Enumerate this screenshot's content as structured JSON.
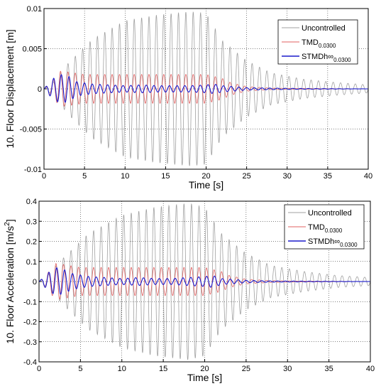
{
  "chart_data": [
    {
      "type": "line",
      "xlabel": "Time [s]",
      "ylabel": "10. Floor Displacement [m]",
      "xlim": [
        0,
        40
      ],
      "ylim": [
        -0.01,
        0.01
      ],
      "xticks": [
        "0",
        "5",
        "10",
        "15",
        "20",
        "25",
        "30",
        "35",
        "40"
      ],
      "yticks": [
        "-0.01",
        "-0.005",
        "0",
        "0.005",
        "0.01"
      ],
      "grid": true,
      "legend_position": "top-right",
      "series": [
        {
          "name": "Uncontrolled",
          "color": "#a0a0a0",
          "frequency_hz": 1.1,
          "envelope": {
            "t": [
              0,
              1,
              3,
              6,
              10,
              14,
              18,
              20,
              22,
              25,
              28,
              32,
              36,
              40
            ],
            "a": [
              0,
              0.0007,
              0.0032,
              0.0062,
              0.0085,
              0.0092,
              0.0096,
              0.0094,
              0.006,
              0.0035,
              0.002,
              0.0012,
              0.0008,
              0.0005
            ]
          }
        },
        {
          "name": "TMD",
          "name_sub": "0.0300",
          "color": "#e06060",
          "frequency_hz": 1.1,
          "envelope": {
            "t": [
              0,
              1,
              2,
              3,
              5,
              10,
              15,
              20,
              22,
              23,
              25,
              28,
              32,
              40
            ],
            "a": [
              0,
              0.001,
              0.0022,
              0.0021,
              0.0018,
              0.0018,
              0.0018,
              0.0018,
              0.0013,
              0.0008,
              0.0003,
              0.0001,
              5e-05,
              0
            ]
          }
        },
        {
          "name": "STMDh∞",
          "name_sub": "0.0300",
          "color": "#1a1acc",
          "frequency_hz": 1.05,
          "envelope": {
            "t": [
              0,
              1,
              2,
              3,
              4,
              6,
              8,
              10,
              12,
              14,
              16,
              18,
              20,
              21,
              22,
              25,
              28,
              32,
              40
            ],
            "a": [
              0,
              0.0012,
              0.0018,
              0.0016,
              0.0009,
              0.0006,
              0.0005,
              0.0004,
              0.0005,
              0.0004,
              0.0004,
              0.0004,
              0.0005,
              0.0006,
              0.0004,
              0.00015,
              0.0001,
              5e-05,
              0
            ]
          }
        }
      ]
    },
    {
      "type": "line",
      "xlabel": "Time [s]",
      "ylabel": "10. Floor Acceleration [m/s",
      "ylabel_sup": "2",
      "ylabel_end": "]",
      "xlim": [
        0,
        40
      ],
      "ylim": [
        -0.4,
        0.4
      ],
      "xticks": [
        "0",
        "5",
        "10",
        "15",
        "20",
        "25",
        "30",
        "35",
        "40"
      ],
      "yticks": [
        "-0.4",
        "-0.3",
        "-0.2",
        "-0.1",
        "0",
        "0.1",
        "0.2",
        "0.3",
        "0.4"
      ],
      "grid": true,
      "legend_position": "top-right",
      "series": [
        {
          "name": "Uncontrolled",
          "color": "#a0a0a0",
          "frequency_hz": 1.1,
          "envelope": {
            "t": [
              0,
              1,
              3,
              6,
              10,
              14,
              18,
              20,
              22,
              25,
              28,
              32,
              36,
              40
            ],
            "a": [
              0,
              0.03,
              0.12,
              0.24,
              0.33,
              0.37,
              0.39,
              0.37,
              0.24,
              0.14,
              0.08,
              0.05,
              0.03,
              0.02
            ]
          }
        },
        {
          "name": "TMD",
          "name_sub": "0.0300",
          "color": "#e06060",
          "frequency_hz": 1.1,
          "envelope": {
            "t": [
              0,
              1,
              2,
              3,
              5,
              10,
              15,
              20,
              22,
              23,
              25,
              28,
              32,
              40
            ],
            "a": [
              0,
              0.04,
              0.09,
              0.085,
              0.07,
              0.07,
              0.07,
              0.07,
              0.05,
              0.03,
              0.012,
              0.005,
              0.002,
              0
            ]
          }
        },
        {
          "name": "STMDh∞",
          "name_sub": "0.0300",
          "color": "#1a1acc",
          "frequency_hz": 1.05,
          "envelope": {
            "t": [
              0,
              1,
              2,
              3,
              4,
              6,
              8,
              10,
              12,
              14,
              16,
              18,
              20,
              21,
              22,
              25,
              28,
              32,
              40
            ],
            "a": [
              0,
              0.04,
              0.07,
              0.06,
              0.04,
              0.025,
              0.02,
              0.015,
              0.02,
              0.015,
              0.015,
              0.02,
              0.025,
              0.03,
              0.015,
              0.006,
              0.003,
              0.002,
              0
            ]
          }
        }
      ]
    }
  ]
}
